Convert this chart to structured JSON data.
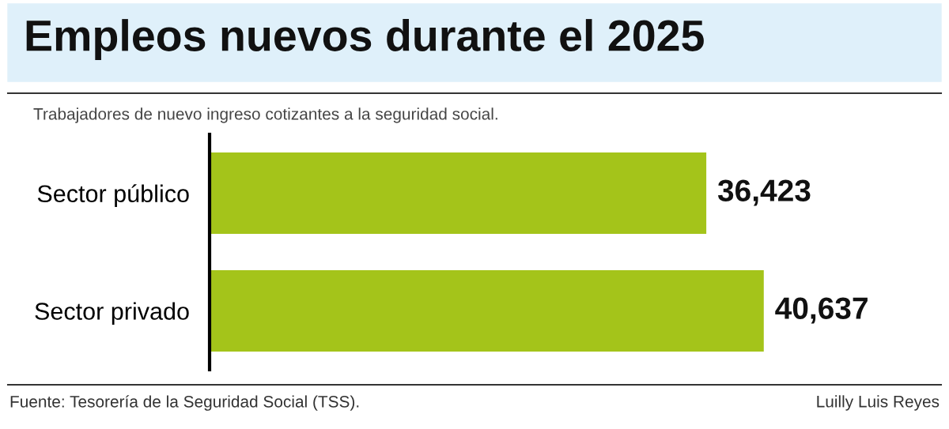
{
  "chart_data": {
    "type": "bar",
    "orientation": "horizontal",
    "title": "Empleos nuevos durante el 2025",
    "subtitle": "Trabajadores de nuevo ingreso cotizantes a la seguridad social.",
    "categories": [
      "Sector público",
      "Sector privado"
    ],
    "values": [
      36423,
      40637
    ],
    "color": "#a4c41a",
    "value_labels": [
      "36,423",
      "40,637"
    ],
    "tick_labels": "y",
    "grid": false,
    "legend": false,
    "annotations": [
      "Fuente: Tesorería de la Seguridad Social (TSS).",
      "Luilly Luis Reyes"
    ]
  }
}
